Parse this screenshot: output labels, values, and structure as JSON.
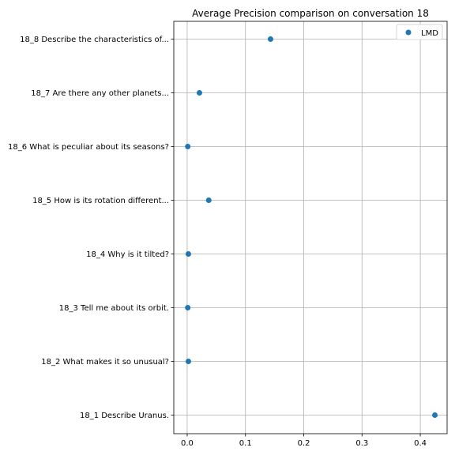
{
  "chart_data": {
    "type": "scatter",
    "title": "Average Precision comparison on conversation 18",
    "xlabel": "",
    "ylabel": "",
    "xlim": [
      -0.023,
      0.446
    ],
    "x_ticks": [
      0.0,
      0.1,
      0.2,
      0.3,
      0.4
    ],
    "x_tick_labels": [
      "0.0",
      "0.1",
      "0.2",
      "0.3",
      "0.4"
    ],
    "categories": [
      "18_1 Describe Uranus.",
      "18_2 What makes it so unusual?",
      "18_3 Tell me about its orbit.",
      "18_4 Why is it tilted?",
      "18_5 How is its rotation different...",
      "18_6 What is peculiar about its seasons?",
      "18_7 Are there any other planets...",
      "18_8 Describe the characteristics of..."
    ],
    "series": [
      {
        "name": "LMD",
        "color": "#1f77b4",
        "values": [
          0.425,
          0.002,
          0.001,
          0.002,
          0.037,
          0.001,
          0.021,
          0.143
        ]
      }
    ],
    "grid": true,
    "legend_position": "top-right"
  }
}
